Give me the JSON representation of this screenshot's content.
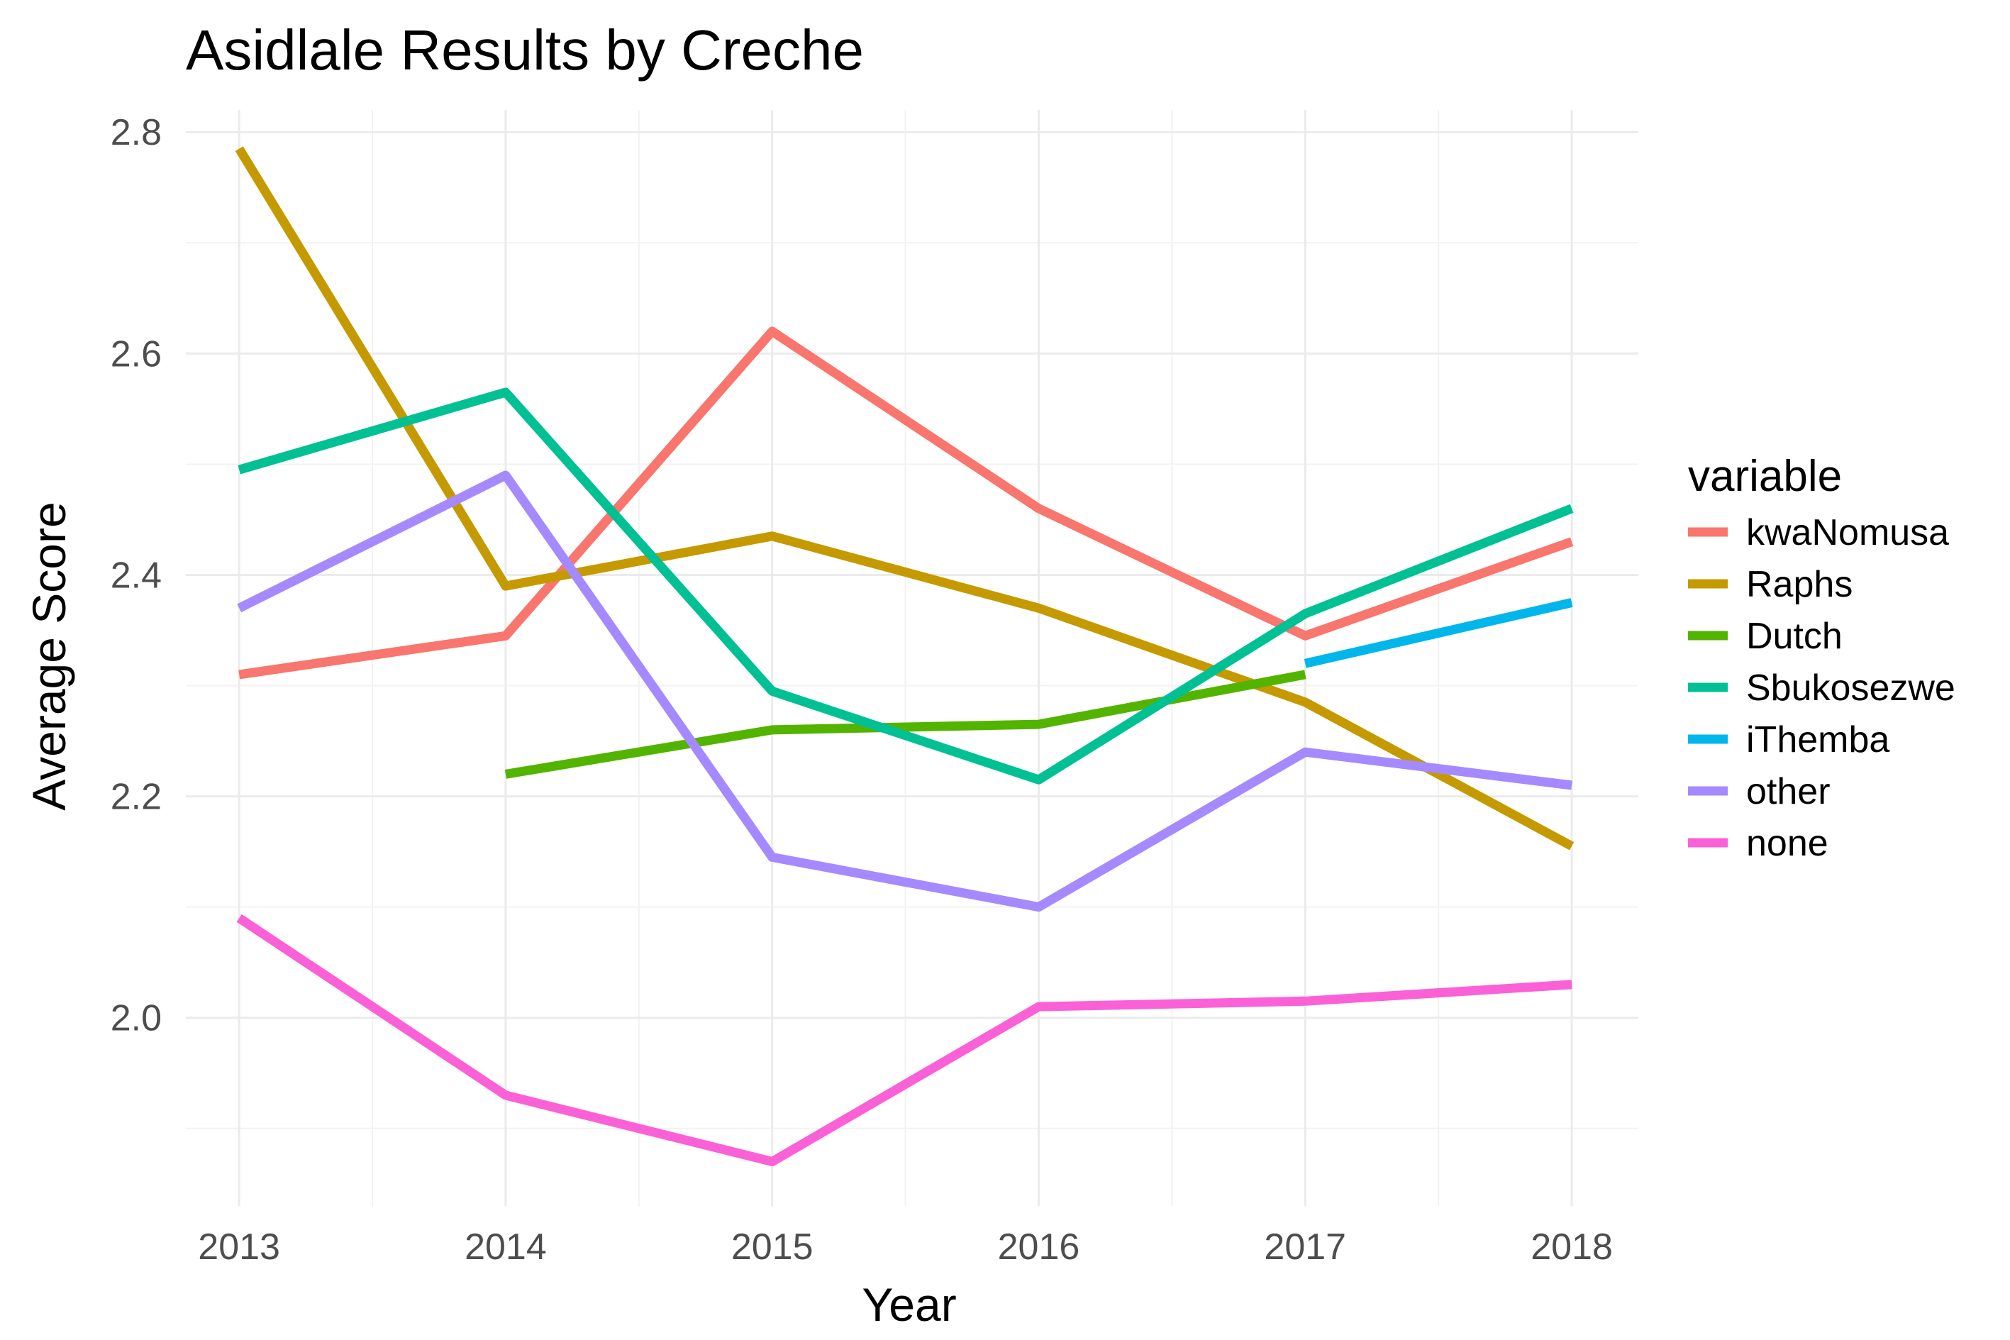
{
  "chart_data": {
    "type": "line",
    "title": "Asidlale Results by Creche",
    "xlabel": "Year",
    "ylabel": "Average Score",
    "x": [
      2013,
      2014,
      2015,
      2016,
      2017,
      2018
    ],
    "x_ticks": [
      "2013",
      "2014",
      "2015",
      "2016",
      "2017",
      "2018"
    ],
    "y_ticks": [
      "2.0",
      "2.2",
      "2.4",
      "2.6",
      "2.8"
    ],
    "xlim": [
      2012.8,
      2018.25
    ],
    "ylim": [
      1.83,
      2.82
    ],
    "grid": true,
    "legend": {
      "title": "variable",
      "position": "right"
    },
    "series": [
      {
        "name": "kwaNomusa",
        "color": "#F8766D",
        "values": [
          2.31,
          2.345,
          2.62,
          2.46,
          2.345,
          2.43
        ]
      },
      {
        "name": "Raphs",
        "color": "#C49A00",
        "values": [
          2.785,
          2.39,
          2.435,
          2.37,
          2.285,
          2.155
        ]
      },
      {
        "name": "Dutch",
        "color": "#53B400",
        "values": [
          null,
          2.22,
          2.26,
          2.265,
          2.31,
          null
        ]
      },
      {
        "name": "Sbukosezwe",
        "color": "#00C094",
        "values": [
          2.495,
          2.565,
          2.295,
          2.215,
          2.365,
          2.46
        ]
      },
      {
        "name": "iThemba",
        "color": "#00B6EB",
        "values": [
          null,
          null,
          null,
          null,
          2.32,
          2.375
        ]
      },
      {
        "name": "other",
        "color": "#A58AFF",
        "values": [
          2.37,
          2.49,
          2.145,
          2.1,
          2.24,
          2.21
        ]
      },
      {
        "name": "none",
        "color": "#FB61D7",
        "values": [
          2.09,
          1.93,
          1.87,
          2.01,
          2.015,
          2.03
        ]
      }
    ]
  }
}
